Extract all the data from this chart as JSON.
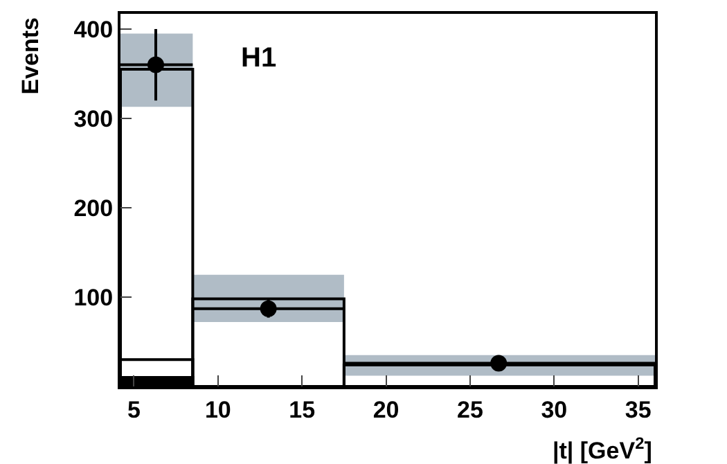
{
  "chart_data": {
    "type": "scatter",
    "xlabel": "|t| [GeV$^{2}$]",
    "ylabel": "Events",
    "annotations": [
      "H1"
    ],
    "xlim": [
      4.2,
      36
    ],
    "xticks": [
      5,
      10,
      15,
      20,
      25,
      30,
      35
    ],
    "ylim": [
      0,
      417
    ],
    "yticks": [
      100,
      200,
      300,
      400
    ],
    "series": [
      {
        "type": "histogram",
        "color": "#b0bcc6",
        "bins": [
          4.2,
          8.5,
          17.5,
          36
        ],
        "base": [
          313,
          72,
          12
        ],
        "values": [
          82,
          53,
          23
        ]
      },
      {
        "type": "histogram",
        "color": "#000000",
        "bins": [
          4.2,
          8.5,
          17.5,
          36
        ],
        "values": [
          355,
          98,
          24
        ]
      },
      {
        "type": "histogram",
        "color": "#000000",
        "bins": [
          4.2,
          8.5
        ],
        "values": [
          30
        ]
      },
      {
        "type": "histogram",
        "color": "#000000",
        "bins": [
          4.2,
          8.5
        ],
        "values": [
          10
        ]
      },
      {
        "color": "#000000",
        "marker": "circle",
        "x": [
          6.3,
          13,
          26.7
        ],
        "values": [
          360,
          87,
          26
        ],
        "errors": [
          [
            320,
            400
          ],
          [
            77,
            97
          ],
          [
            22,
            30
          ]
        ],
        "xerrors": [
          [
            4.2,
            8.5
          ],
          [
            8.5,
            17.5
          ],
          [
            17.5,
            36
          ]
        ]
      }
    ]
  }
}
